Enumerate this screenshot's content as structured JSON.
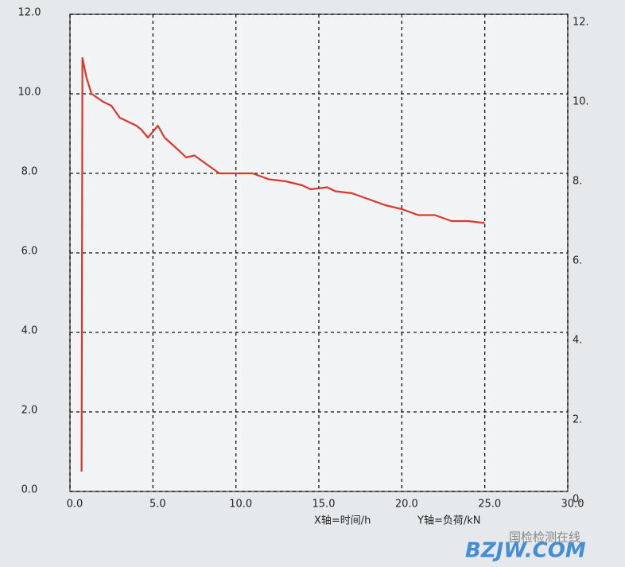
{
  "chart_data": {
    "type": "line",
    "x_label": "X轴=时间/h",
    "y_label": "Y轴=负荷/kN",
    "xlim": [
      0,
      30
    ],
    "ylim": [
      0,
      12
    ],
    "y2lim": [
      0,
      12
    ],
    "xticks": [
      {
        "value": 0,
        "label": "0.0"
      },
      {
        "value": 5,
        "label": "5.0"
      },
      {
        "value": 10,
        "label": "10.0"
      },
      {
        "value": 15,
        "label": "15.0"
      },
      {
        "value": 20,
        "label": "20.0"
      },
      {
        "value": 25,
        "label": "25.0"
      },
      {
        "value": 30,
        "label": "30.0"
      }
    ],
    "yticks": [
      {
        "value": 0,
        "label": "0.0"
      },
      {
        "value": 2,
        "label": "2.0"
      },
      {
        "value": 4,
        "label": "4.0"
      },
      {
        "value": 6,
        "label": "6.0"
      },
      {
        "value": 8,
        "label": "8.0"
      },
      {
        "value": 10,
        "label": "10.0"
      },
      {
        "value": 12,
        "label": "12.0"
      }
    ],
    "y2ticks": [
      {
        "value": 0,
        "label": "0."
      },
      {
        "value": 2,
        "label": "2."
      },
      {
        "value": 4,
        "label": "4."
      },
      {
        "value": 6,
        "label": "6."
      },
      {
        "value": 8,
        "label": "8."
      },
      {
        "value": 10,
        "label": "10."
      },
      {
        "value": 12,
        "label": "12."
      }
    ],
    "grid": true,
    "x": [
      0.7,
      0.75,
      0.8,
      1.0,
      1.3,
      2.0,
      2.5,
      3.0,
      4.0,
      4.3,
      4.7,
      5.0,
      5.3,
      5.7,
      6.5,
      7.0,
      7.5,
      8.0,
      8.5,
      9.0,
      10.0,
      11.0,
      12.0,
      13.0,
      14.0,
      14.5,
      15.5,
      16.0,
      17.0,
      18.0,
      19.0,
      20.0,
      21.0,
      22.0,
      23.0,
      24.0,
      25.0
    ],
    "series": [
      {
        "color": "#d9382c",
        "values": [
          0.5,
          10.9,
          10.8,
          10.4,
          10.0,
          9.8,
          9.7,
          9.4,
          9.2,
          9.1,
          8.9,
          9.05,
          9.2,
          8.9,
          8.6,
          8.4,
          8.45,
          8.3,
          8.15,
          8.0,
          8.0,
          8.0,
          7.85,
          7.8,
          7.7,
          7.6,
          7.65,
          7.55,
          7.5,
          7.35,
          7.2,
          7.1,
          6.95,
          6.95,
          6.8,
          6.8,
          6.75
        ]
      }
    ]
  },
  "watermark": {
    "site": "BZJW.COM",
    "source": "国检检测在线"
  }
}
